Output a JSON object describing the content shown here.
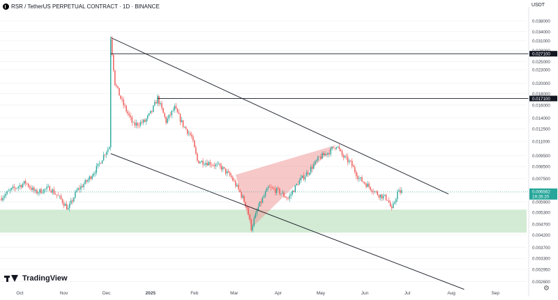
{
  "header": {
    "title": "RSR / TetherUS PERPETUAL CONTRACT · 1D · BINANCE",
    "currency": "USDT"
  },
  "branding": {
    "logo_text": "TradingView"
  },
  "icons": {
    "symbol": "rsr-coin-icon",
    "settings": "gear-icon"
  },
  "colors": {
    "up": "#26a69a",
    "down": "#ef5350",
    "zone_fill": "#c8e6c9",
    "wedge_fill": "#ef9a9a",
    "badge_green": "#26a69a"
  },
  "chart_data": {
    "type": "candlestick",
    "exchange": "BINANCE",
    "timeframe": "1D",
    "y_scale": "log",
    "ylim": [
      0.0025,
      0.042
    ],
    "y_ticks": [
      "0.038000",
      "0.034000",
      "0.031000",
      "0.028000",
      "0.025000",
      "0.023000",
      "0.020000",
      "0.018000",
      "0.016000",
      "0.014000",
      "0.012500",
      "0.011000",
      "0.009500",
      "0.008500",
      "0.007500",
      "0.006500",
      "0.005900",
      "0.005300",
      "0.004700",
      "0.004200",
      "0.003700",
      "0.003300",
      "0.002950",
      "0.002600"
    ],
    "x_ticks": [
      "Oct",
      "Nov",
      "Dec",
      "2025",
      "Feb",
      "Mar",
      "Apr",
      "May",
      "Jun",
      "Jul",
      "Aug",
      "Sep"
    ],
    "x_range": [
      "2024-09-17",
      "2025-09-23"
    ],
    "price_path": [
      [
        "2024-09-17",
        0.00612
      ],
      [
        "2024-09-25",
        0.00668
      ],
      [
        "2024-10-05",
        0.0072
      ],
      [
        "2024-10-12",
        0.0065
      ],
      [
        "2024-10-22",
        0.0068
      ],
      [
        "2024-10-30",
        0.00605
      ],
      [
        "2024-11-04",
        0.00548
      ],
      [
        "2024-11-10",
        0.0066
      ],
      [
        "2024-11-18",
        0.0074
      ],
      [
        "2024-11-25",
        0.0085
      ],
      [
        "2024-11-30",
        0.0098
      ],
      [
        "2024-12-03",
        0.0104
      ],
      [
        "2024-12-04",
        0.032
      ],
      [
        "2024-12-07",
        0.02
      ],
      [
        "2024-12-12",
        0.0165
      ],
      [
        "2024-12-20",
        0.013
      ],
      [
        "2024-12-28",
        0.0135
      ],
      [
        "2025-01-02",
        0.015
      ],
      [
        "2025-01-06",
        0.0172
      ],
      [
        "2025-01-12",
        0.0135
      ],
      [
        "2025-01-18",
        0.0155
      ],
      [
        "2025-01-24",
        0.013
      ],
      [
        "2025-01-30",
        0.0115
      ],
      [
        "2025-02-03",
        0.009
      ],
      [
        "2025-02-12",
        0.0088
      ],
      [
        "2025-02-20",
        0.0084
      ],
      [
        "2025-02-27",
        0.0076
      ],
      [
        "2025-03-05",
        0.0065
      ],
      [
        "2025-03-10",
        0.0056
      ],
      [
        "2025-03-13",
        0.0045
      ],
      [
        "2025-03-18",
        0.0056
      ],
      [
        "2025-03-25",
        0.0068
      ],
      [
        "2025-04-01",
        0.0066
      ],
      [
        "2025-04-08",
        0.0061
      ],
      [
        "2025-04-15",
        0.0072
      ],
      [
        "2025-04-22",
        0.008
      ],
      [
        "2025-04-30",
        0.0093
      ],
      [
        "2025-05-08",
        0.01
      ],
      [
        "2025-05-12",
        0.0106
      ],
      [
        "2025-05-16",
        0.0095
      ],
      [
        "2025-05-22",
        0.0088
      ],
      [
        "2025-05-28",
        0.0075
      ],
      [
        "2025-06-03",
        0.007
      ],
      [
        "2025-06-10",
        0.0064
      ],
      [
        "2025-06-17",
        0.0061
      ],
      [
        "2025-06-20",
        0.0054
      ],
      [
        "2025-06-24",
        0.0065
      ],
      [
        "2025-06-27",
        0.00656
      ]
    ],
    "horizontal_levels": [
      {
        "price": 0.0271,
        "label": "0.027100",
        "from": "2024-12-04"
      },
      {
        "price": 0.0171,
        "label": "0.017100",
        "from": "2025-01-06"
      }
    ],
    "channel_lines": [
      {
        "from": [
          "2024-12-04",
          0.032
        ],
        "to": [
          "2025-07-30",
          0.0064
        ]
      },
      {
        "from": [
          "2024-12-04",
          0.0097
        ],
        "to": [
          "2025-08-10",
          0.0024
        ]
      }
    ],
    "demand_zone": {
      "top": 0.00545,
      "bottom": 0.0043
    },
    "wedge_pattern": [
      [
        "2025-03-02",
        0.0078
      ],
      [
        "2025-05-12",
        0.0106
      ],
      [
        "2025-03-13",
        0.0045
      ]
    ],
    "current_price": {
      "price": 0.006562,
      "label": "0.006562",
      "countdown": "19:26:20"
    }
  }
}
